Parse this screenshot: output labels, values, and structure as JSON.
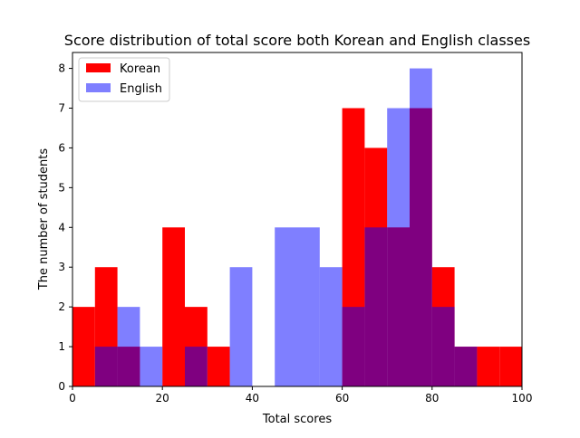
{
  "chart_data": {
    "type": "bar",
    "title": "Score distribution of total score both Korean and English classes",
    "xlabel": "Total scores",
    "ylabel": "The number of students",
    "xlim": [
      0,
      100
    ],
    "ylim": [
      0,
      8.4
    ],
    "xticks": [
      "0",
      "20",
      "40",
      "60",
      "80",
      "100"
    ],
    "yticks": [
      "0",
      "1",
      "2",
      "3",
      "4",
      "5",
      "6",
      "7",
      "8"
    ],
    "bin_width": 5,
    "bin_starts": [
      0,
      5,
      10,
      15,
      20,
      25,
      30,
      35,
      40,
      45,
      50,
      55,
      60,
      65,
      70,
      75,
      80,
      85,
      90,
      95
    ],
    "grid": false,
    "legend_position": "top-left",
    "series": [
      {
        "name": "Korean",
        "color": "#ff0000",
        "alpha": 1.0,
        "values": [
          2,
          3,
          1,
          0,
          4,
          2,
          1,
          0,
          0,
          0,
          0,
          0,
          7,
          6,
          4,
          7,
          3,
          1,
          1,
          1
        ]
      },
      {
        "name": "English",
        "color": "#0000ff",
        "alpha": 0.5,
        "values": [
          0,
          1,
          2,
          1,
          0,
          1,
          0,
          3,
          0,
          4,
          4,
          3,
          2,
          4,
          7,
          8,
          2,
          1,
          0,
          0
        ]
      }
    ]
  }
}
